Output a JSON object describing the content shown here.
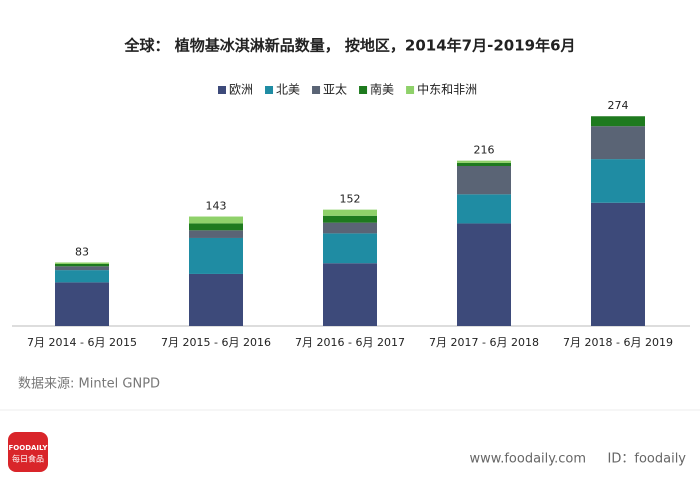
{
  "chart_data": {
    "type": "stacked-bar",
    "title": "全球： 植物基冰淇淋新品数量， 按地区，2014年7月-2019年6月",
    "categories": [
      "7月 2014 - 6月 2015",
      "7月 2015 - 6月 2016",
      "7月 2016 - 6月 2017",
      "7月 2017 - 6月 2018",
      "7月 2018 - 6月 2019"
    ],
    "series": [
      {
        "name": "欧洲",
        "color": "#3d4a7a",
        "values": [
          57,
          68,
          82,
          134,
          161
        ]
      },
      {
        "name": "北美",
        "color": "#1f8ca3",
        "values": [
          16,
          47,
          39,
          38,
          57
        ]
      },
      {
        "name": "亚太",
        "color": "#5a6475",
        "values": [
          5,
          10,
          14,
          37,
          43
        ]
      },
      {
        "name": "南美",
        "color": "#1e7a1e",
        "values": [
          3,
          9,
          9,
          4,
          13
        ]
      },
      {
        "name": "中东和非洲",
        "color": "#8fd16a",
        "values": [
          2,
          9,
          8,
          3,
          0
        ]
      }
    ],
    "totals": [
      83,
      143,
      152,
      216,
      274
    ],
    "ylim": [
      0,
      290
    ],
    "legend": "top"
  },
  "source": "数据来源: Mintel GNPD",
  "footer": {
    "logo": "FOODAILY",
    "logo_sub": "每日食品",
    "site": "www.foodaily.com",
    "id": "ID：foodaily"
  }
}
